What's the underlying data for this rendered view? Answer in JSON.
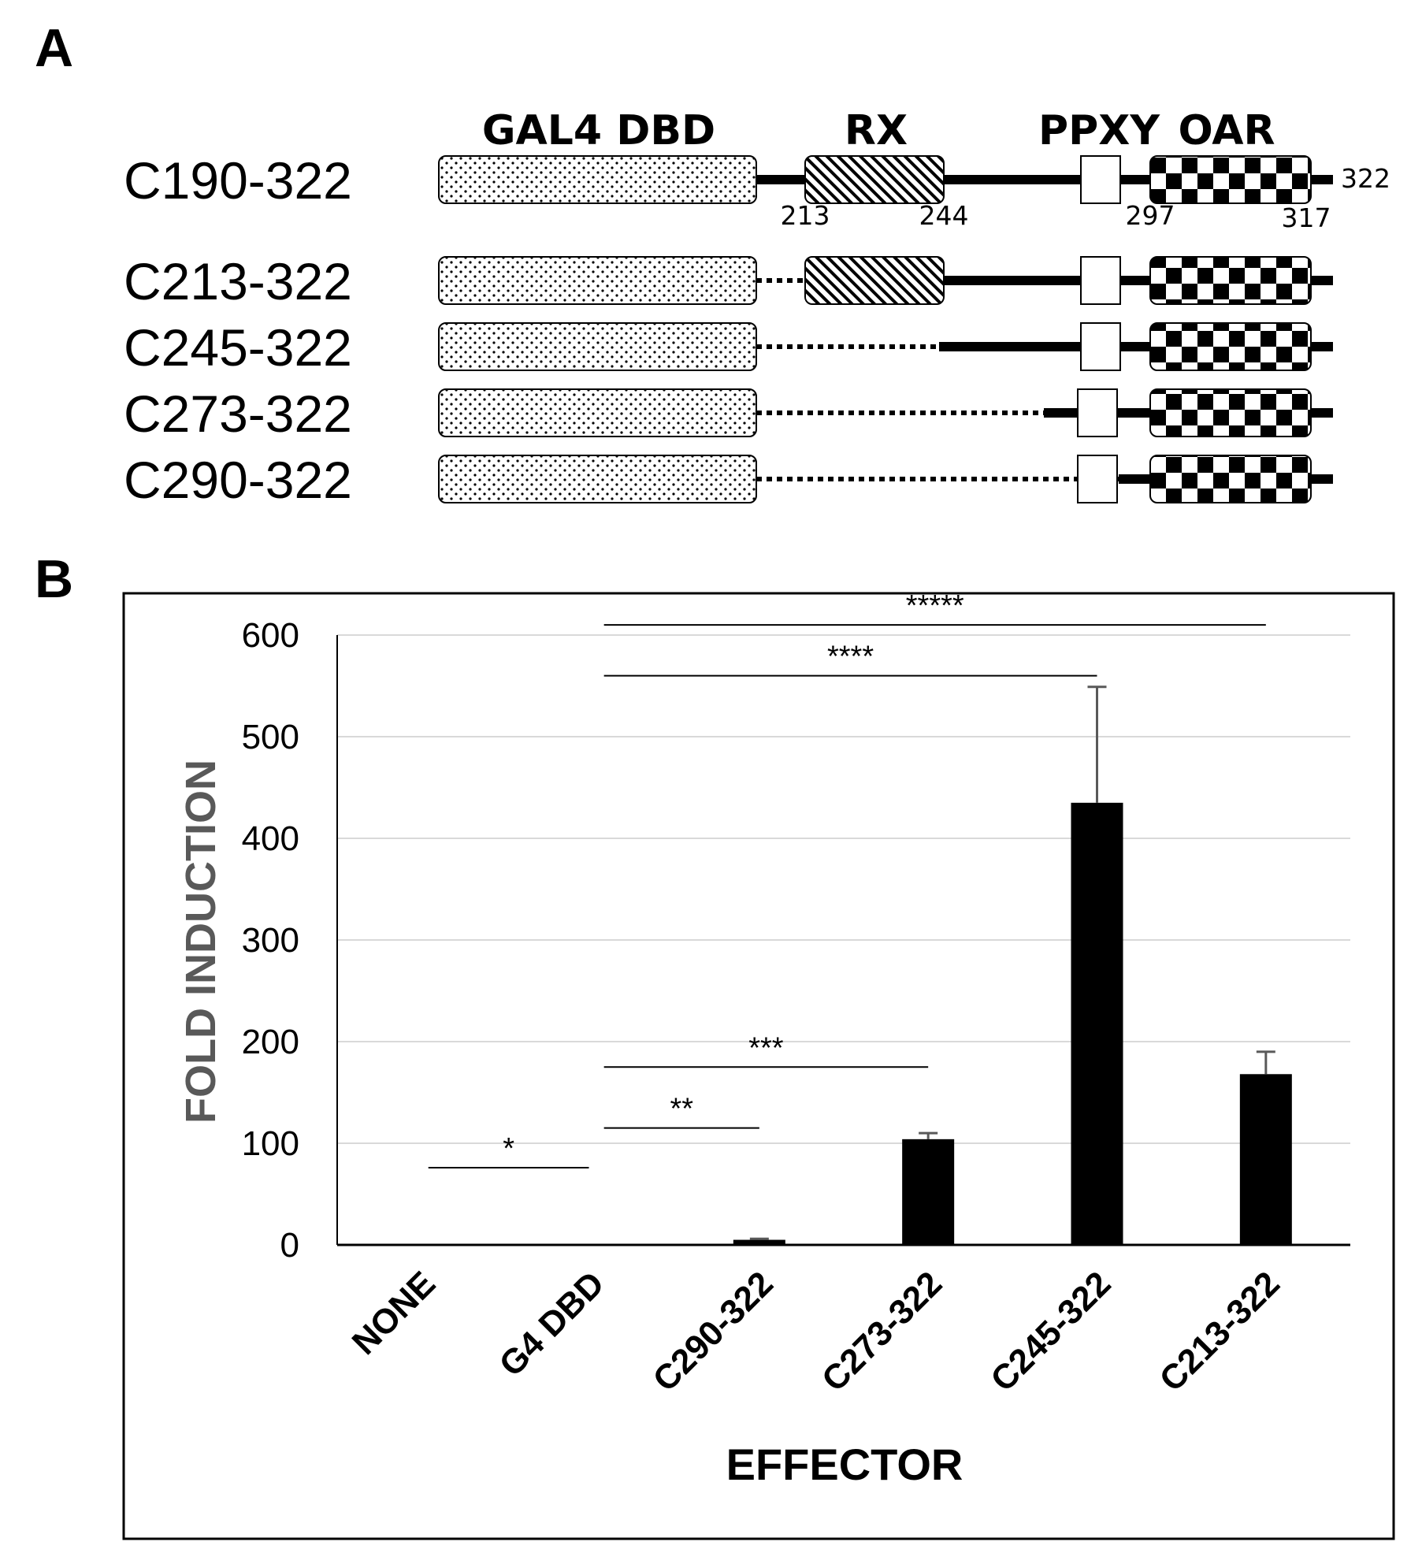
{
  "panel_a": {
    "letter": "A",
    "domain_labels": {
      "gal4": "GAL4 DBD",
      "rx": "RX",
      "ppxy": "PPXY",
      "oar": "OAR"
    },
    "position_labels": [
      "213",
      "244",
      "297",
      "317",
      "322"
    ],
    "constructs": [
      {
        "name": "C190-322",
        "start": 190
      },
      {
        "name": "C213-322",
        "start": 213
      },
      {
        "name": "C245-322",
        "start": 245
      },
      {
        "name": "C273-322",
        "start": 273
      },
      {
        "name": "C290-322",
        "start": 290
      }
    ],
    "domains": {
      "rx": [
        213,
        244
      ],
      "ppxy": [
        297,
        302
      ],
      "oar": [
        305,
        317
      ],
      "end": 322
    }
  },
  "panel_b": {
    "letter": "B"
  },
  "chart_data": {
    "type": "bar",
    "title": "",
    "xlabel": "EFFECTOR",
    "ylabel": "FOLD INDUCTION",
    "ylim": [
      0,
      600
    ],
    "yticks": [
      0,
      100,
      200,
      300,
      400,
      500,
      600
    ],
    "grid": true,
    "categories": [
      "NONE",
      "G4 DBD",
      "C290-322",
      "C273-322",
      "C245-322",
      "C213-322"
    ],
    "values": [
      0,
      0,
      5,
      104,
      435,
      168
    ],
    "errors": [
      0,
      0,
      1,
      6,
      114,
      22
    ],
    "significance": [
      {
        "from": "NONE",
        "to": "G4 DBD",
        "label": "*",
        "y": 76
      },
      {
        "from": "G4 DBD",
        "to": "C290-322",
        "label": "**",
        "y": 115
      },
      {
        "from": "G4 DBD",
        "to": "C273-322",
        "label": "***",
        "y": 175
      },
      {
        "from": "G4 DBD",
        "to": "C245-322",
        "label": "****",
        "y": 560
      },
      {
        "from": "G4 DBD",
        "to": "C213-322",
        "label": "*****",
        "y": 610
      }
    ]
  }
}
